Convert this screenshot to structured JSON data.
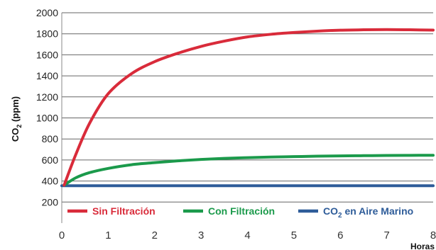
{
  "chart_data": {
    "type": "line",
    "title": "",
    "xlabel": "Horas",
    "ylabel_main": "CO",
    "ylabel_sub": "2",
    "ylabel_tail": " (ppm)",
    "xlim": [
      0,
      8
    ],
    "ylim": [
      0,
      2000
    ],
    "grid": true,
    "legend_position": "bottom-inside",
    "x_ticks": [
      "0",
      "1",
      "2",
      "3",
      "4",
      "5",
      "6",
      "7",
      "8"
    ],
    "y_ticks": [
      "200",
      "400",
      "600",
      "800",
      "1000",
      "1200",
      "1400",
      "1600",
      "1800",
      "2000"
    ],
    "series": [
      {
        "name": "Sin Filtración",
        "color": "#d92b3a",
        "x": [
          0.05,
          0.3,
          0.6,
          1.0,
          1.5,
          2.0,
          2.5,
          3.0,
          3.5,
          4.0,
          4.5,
          5.0,
          5.5,
          6.0,
          6.5,
          7.0,
          7.5,
          8.0
        ],
        "y": [
          360,
          650,
          950,
          1230,
          1420,
          1535,
          1615,
          1680,
          1730,
          1770,
          1795,
          1812,
          1825,
          1834,
          1838,
          1840,
          1838,
          1835
        ]
      },
      {
        "name": "Con Filtración",
        "color": "#1b9a4b",
        "x": [
          0.05,
          0.3,
          0.6,
          1.0,
          1.5,
          2.0,
          2.5,
          3.0,
          3.5,
          4.0,
          4.5,
          5.0,
          5.5,
          6.0,
          6.5,
          7.0,
          7.5,
          8.0
        ],
        "y": [
          360,
          430,
          480,
          520,
          555,
          575,
          592,
          605,
          615,
          622,
          628,
          632,
          636,
          639,
          641,
          643,
          644,
          645
        ]
      },
      {
        "name_main": "CO",
        "name_sub": "2",
        "name_tail": " en Aire Marino",
        "color": "#2e5c99",
        "x": [
          0,
          8
        ],
        "y": [
          355,
          355
        ]
      }
    ]
  }
}
